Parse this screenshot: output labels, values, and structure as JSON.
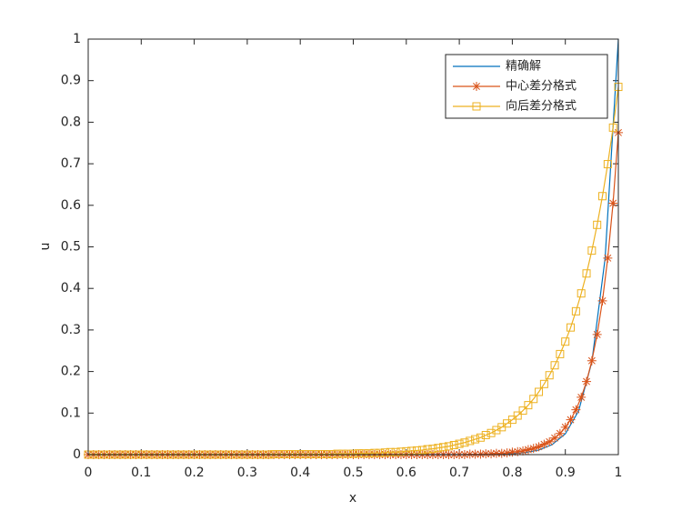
{
  "chart_data": {
    "type": "line",
    "xlabel": "x",
    "ylabel": "u",
    "xlim": [
      0,
      1
    ],
    "ylim": [
      0,
      1
    ],
    "xticks": [
      0,
      0.1,
      0.2,
      0.3,
      0.4,
      0.5,
      0.6,
      0.7,
      0.8,
      0.9,
      1
    ],
    "yticks": [
      0,
      0.1,
      0.2,
      0.3,
      0.4,
      0.5,
      0.6,
      0.7,
      0.8,
      0.9,
      1
    ],
    "legend": "upper right",
    "x": [
      0,
      0.01,
      0.02,
      0.03,
      0.04,
      0.05,
      0.06,
      0.07,
      0.08,
      0.09,
      0.1,
      0.11,
      0.12,
      0.13,
      0.14,
      0.15,
      0.16,
      0.17,
      0.18,
      0.19,
      0.2,
      0.21,
      0.22,
      0.23,
      0.24,
      0.25,
      0.26,
      0.27,
      0.28,
      0.29,
      0.3,
      0.31,
      0.32,
      0.33,
      0.34,
      0.35,
      0.36,
      0.37,
      0.38,
      0.39,
      0.4,
      0.41,
      0.42,
      0.43,
      0.44,
      0.45,
      0.46,
      0.47,
      0.48,
      0.49,
      0.5,
      0.51,
      0.52,
      0.53,
      0.54,
      0.55,
      0.56,
      0.57,
      0.58,
      0.59,
      0.6,
      0.61,
      0.62,
      0.63,
      0.64,
      0.65,
      0.66,
      0.67,
      0.68,
      0.69,
      0.7,
      0.71,
      0.72,
      0.73,
      0.74,
      0.75,
      0.76,
      0.77,
      0.78,
      0.79,
      0.8,
      0.81,
      0.82,
      0.83,
      0.84,
      0.85,
      0.86,
      0.87,
      0.88,
      0.89,
      0.9,
      0.91,
      0.92,
      0.93,
      0.94,
      0.95,
      0.96,
      0.97,
      0.98,
      0.99,
      1
    ],
    "series": [
      {
        "name": "精确解",
        "color": "#0072BD",
        "marker": "none",
        "x": [
          0,
          0.025,
          0.05,
          0.075,
          0.1,
          0.125,
          0.15,
          0.175,
          0.2,
          0.225,
          0.25,
          0.275,
          0.3,
          0.325,
          0.35,
          0.375,
          0.4,
          0.425,
          0.45,
          0.475,
          0.5,
          0.525,
          0.55,
          0.575,
          0.6,
          0.625,
          0.65,
          0.675,
          0.7,
          0.725,
          0.75,
          0.775,
          0.8,
          0.825,
          0.85,
          0.875,
          0.9,
          0.925,
          0.95,
          0.975,
          1
        ],
        "values": [
          0,
          0,
          0,
          0,
          0,
          0,
          0,
          0,
          0,
          0,
          0,
          0,
          0,
          0,
          0,
          0,
          0,
          0,
          0,
          0,
          0,
          0,
          0,
          0,
          0,
          0,
          0,
          0,
          0,
          0,
          0,
          0.001,
          0.0025,
          0.005,
          0.011,
          0.024,
          0.05,
          0.105,
          0.223,
          0.472,
          1
        ]
      },
      {
        "name": "中心差分格式",
        "color": "#D95319",
        "marker": "star",
        "values": [
          0,
          0,
          0,
          0,
          0,
          0,
          0,
          0,
          0,
          0,
          0,
          0,
          0,
          0,
          0,
          0,
          0,
          0,
          0,
          0,
          0,
          0,
          0,
          0,
          0,
          0,
          0,
          0,
          0,
          0,
          0,
          0,
          0,
          0,
          0,
          0,
          0,
          0,
          0,
          0,
          0,
          0,
          0,
          0,
          0,
          0,
          0,
          0,
          0,
          0,
          0,
          0,
          0,
          0,
          0,
          0,
          0,
          0,
          0,
          0,
          0,
          0,
          0,
          0,
          0,
          0,
          0,
          0,
          0,
          0,
          0,
          0,
          0.001,
          0.001,
          0.001,
          0.002,
          0.002,
          0.003,
          0.003,
          0.004,
          0.006,
          0.007,
          0.009,
          0.012,
          0.015,
          0.019,
          0.025,
          0.031,
          0.04,
          0.051,
          0.066,
          0.084,
          0.108,
          0.138,
          0.176,
          0.226,
          0.289,
          0.37,
          0.473,
          0.605,
          0.775
        ]
      },
      {
        "name": "向后差分格式",
        "color": "#EDB120",
        "marker": "square",
        "values": [
          0,
          0,
          0,
          0,
          0,
          0,
          0,
          0,
          0,
          0,
          0,
          0,
          0,
          0,
          0,
          0,
          0,
          0,
          0,
          0,
          0,
          0,
          0,
          0,
          0,
          0,
          0,
          0,
          0,
          0,
          0,
          0,
          0,
          0,
          0,
          0.001,
          0.001,
          0.001,
          0.001,
          0.001,
          0.001,
          0.001,
          0.001,
          0.001,
          0.001,
          0.001,
          0.001,
          0.002,
          0.002,
          0.002,
          0.002,
          0.003,
          0.003,
          0.003,
          0.004,
          0.004,
          0.005,
          0.006,
          0.006,
          0.007,
          0.008,
          0.009,
          0.01,
          0.011,
          0.013,
          0.014,
          0.016,
          0.018,
          0.02,
          0.023,
          0.026,
          0.029,
          0.033,
          0.037,
          0.041,
          0.047,
          0.052,
          0.059,
          0.066,
          0.075,
          0.084,
          0.094,
          0.106,
          0.119,
          0.134,
          0.151,
          0.17,
          0.191,
          0.215,
          0.242,
          0.272,
          0.306,
          0.345,
          0.388,
          0.436,
          0.491,
          0.553,
          0.622,
          0.699,
          0.787,
          0.885
        ]
      }
    ]
  }
}
